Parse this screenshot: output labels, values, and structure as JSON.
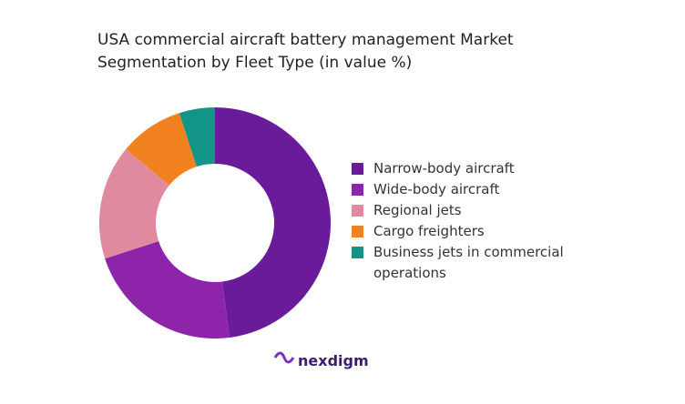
{
  "chart_data": {
    "type": "donut",
    "title": "USA commercial aircraft battery management Market Segmentation by Fleet Type (in value %)",
    "categories": [
      "Narrow-body aircraft",
      "Wide-body aircraft",
      "Regional jets",
      "Cargo freighters",
      "Business jets in commercial operations"
    ],
    "values": [
      48,
      22,
      16,
      9,
      5
    ],
    "colors": [
      "#6a1b9a",
      "#8e24aa",
      "#e08aa0",
      "#f28220",
      "#129488"
    ],
    "legend": "right",
    "brand": "nexdigm"
  }
}
